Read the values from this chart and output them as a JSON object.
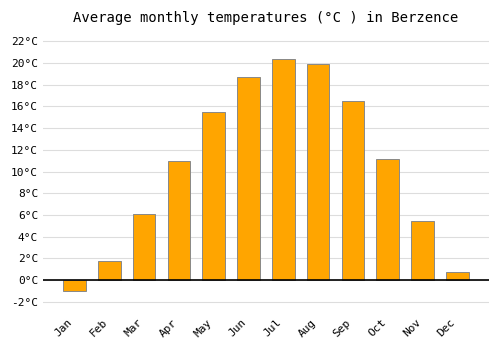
{
  "months": [
    "Jan",
    "Feb",
    "Mar",
    "Apr",
    "May",
    "Jun",
    "Jul",
    "Aug",
    "Sep",
    "Oct",
    "Nov",
    "Dec"
  ],
  "temperatures": [
    -1.0,
    1.8,
    6.1,
    11.0,
    15.5,
    18.7,
    20.4,
    19.9,
    16.5,
    11.2,
    5.4,
    0.7
  ],
  "bar_color": "#FFA500",
  "bar_edge_color": "#888888",
  "title": "Average monthly temperatures (°C ) in Berzence",
  "ylim": [
    -3,
    23
  ],
  "yticks": [
    -2,
    0,
    2,
    4,
    6,
    8,
    10,
    12,
    14,
    16,
    18,
    20,
    22
  ],
  "background_color": "#ffffff",
  "grid_color": "#dddddd",
  "title_fontsize": 10,
  "tick_fontsize": 8
}
